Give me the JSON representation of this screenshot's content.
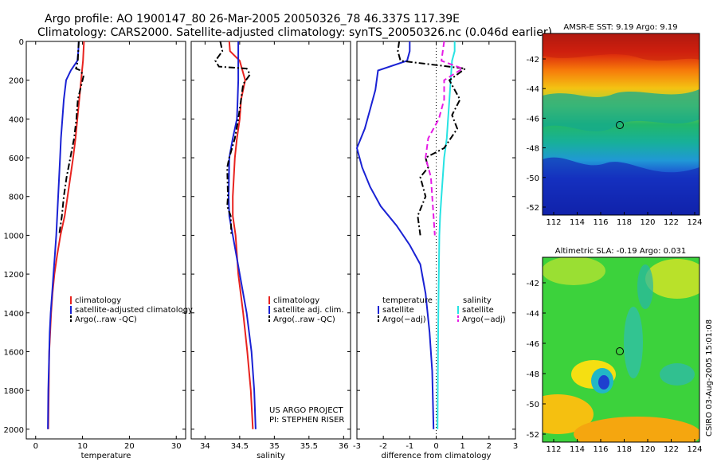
{
  "title": {
    "line1": "Argo profile: AO 1900147_80 26-Mar-2005 20050326_78 46.337S 117.39E",
    "line2": "Climatology: CARS2000. Satellite-adjusted climatology: synTS_20050326.nc (0.046d earlier)"
  },
  "side_stamp": "CSIRO 03-Aug-2005 15:01:08",
  "colors": {
    "climatology": "#e8231f",
    "satellite": "#1a22d4",
    "argo": "#000000",
    "sal_satellite": "#27e3e3",
    "sal_argo": "#e61be6"
  },
  "chart_data": [
    {
      "id": "temperature",
      "type": "line",
      "xlabel": "temperature",
      "ylabel": "",
      "xlim": [
        -2,
        32
      ],
      "ylim": [
        0,
        2050
      ],
      "y_inverted": true,
      "xticks": [
        0,
        10,
        20,
        30
      ],
      "yticks": [
        0,
        200,
        400,
        600,
        800,
        1000,
        1200,
        1400,
        1600,
        1800,
        2000
      ],
      "legend": [
        "climatology",
        "satellite-adjusted climatology",
        "Argo(..raw -QC)"
      ],
      "series": [
        {
          "name": "climatology",
          "style": "solid",
          "color": "#e8231f",
          "points": [
            [
              10.3,
              0
            ],
            [
              10.2,
              50
            ],
            [
              10.1,
              100
            ],
            [
              9.9,
              150
            ],
            [
              9.7,
              200
            ],
            [
              9.3,
              300
            ],
            [
              8.9,
              400
            ],
            [
              8.5,
              500
            ],
            [
              8.0,
              600
            ],
            [
              7.4,
              700
            ],
            [
              6.8,
              800
            ],
            [
              6.2,
              900
            ],
            [
              5.3,
              1000
            ],
            [
              4.6,
              1100
            ],
            [
              4.0,
              1200
            ],
            [
              3.6,
              1300
            ],
            [
              3.3,
              1400
            ],
            [
              3.1,
              1500
            ],
            [
              2.9,
              1600
            ],
            [
              2.8,
              1800
            ],
            [
              2.7,
              2000
            ]
          ]
        },
        {
          "name": "satellite-adjusted climatology",
          "style": "solid",
          "color": "#1a22d4",
          "points": [
            [
              9.2,
              0
            ],
            [
              9.1,
              50
            ],
            [
              8.9,
              100
            ],
            [
              7.5,
              150
            ],
            [
              6.5,
              200
            ],
            [
              6.0,
              300
            ],
            [
              5.7,
              400
            ],
            [
              5.4,
              500
            ],
            [
              5.2,
              600
            ],
            [
              5.0,
              700
            ],
            [
              4.8,
              800
            ],
            [
              4.6,
              900
            ],
            [
              4.4,
              1000
            ],
            [
              4.1,
              1100
            ],
            [
              3.8,
              1200
            ],
            [
              3.5,
              1300
            ],
            [
              3.2,
              1400
            ],
            [
              3.0,
              1500
            ],
            [
              2.9,
              1600
            ],
            [
              2.7,
              1800
            ],
            [
              2.6,
              2000
            ]
          ]
        },
        {
          "name": "Argo(..raw -QC)",
          "style": "dash-dot",
          "color": "#000000",
          "points": [
            [
              9.2,
              0
            ],
            [
              9.1,
              40
            ],
            [
              9.0,
              100
            ],
            [
              8.6,
              140
            ],
            [
              9.6,
              150
            ],
            [
              10.2,
              180
            ],
            [
              9.5,
              250
            ],
            [
              9.0,
              300
            ],
            [
              8.7,
              400
            ],
            [
              8.2,
              500
            ],
            [
              7.4,
              600
            ],
            [
              6.6,
              700
            ],
            [
              6.0,
              800
            ],
            [
              5.6,
              900
            ],
            [
              5.0,
              1000
            ]
          ]
        }
      ]
    },
    {
      "id": "salinity",
      "type": "line",
      "xlabel": "salinity",
      "xlim": [
        33.8,
        36.1
      ],
      "ylim": [
        0,
        2050
      ],
      "y_inverted": true,
      "xticks": [
        34,
        34.5,
        35,
        35.5,
        36
      ],
      "yticks": [
        0,
        200,
        400,
        600,
        800,
        1000,
        1200,
        1400,
        1600,
        1800,
        2000
      ],
      "legend": [
        "climatology",
        "satellite adj. clim.",
        "Argo(..raw -QC)"
      ],
      "annotation": [
        "US ARGO PROJECT",
        "PI: STEPHEN RISER"
      ],
      "series": [
        {
          "name": "climatology",
          "style": "solid",
          "color": "#e8231f",
          "points": [
            [
              34.35,
              0
            ],
            [
              34.36,
              50
            ],
            [
              34.5,
              100
            ],
            [
              34.58,
              200
            ],
            [
              34.52,
              300
            ],
            [
              34.5,
              400
            ],
            [
              34.46,
              500
            ],
            [
              34.43,
              600
            ],
            [
              34.4,
              800
            ],
            [
              34.4,
              900
            ],
            [
              34.44,
              1000
            ],
            [
              34.48,
              1200
            ],
            [
              34.55,
              1400
            ],
            [
              34.61,
              1600
            ],
            [
              34.66,
              1800
            ],
            [
              34.69,
              2000
            ]
          ]
        },
        {
          "name": "satellite adj. clim.",
          "style": "solid",
          "color": "#1a22d4",
          "points": [
            [
              34.48,
              0
            ],
            [
              34.48,
              50
            ],
            [
              34.48,
              100
            ],
            [
              34.48,
              200
            ],
            [
              34.47,
              300
            ],
            [
              34.46,
              400
            ],
            [
              34.4,
              500
            ],
            [
              34.35,
              600
            ],
            [
              34.34,
              800
            ],
            [
              34.35,
              900
            ],
            [
              34.4,
              1000
            ],
            [
              34.5,
              1200
            ],
            [
              34.6,
              1400
            ],
            [
              34.67,
              1600
            ],
            [
              34.71,
              1800
            ],
            [
              34.73,
              2000
            ]
          ]
        },
        {
          "name": "Argo(..raw -QC)",
          "style": "dash-dot",
          "color": "#000000",
          "points": [
            [
              34.22,
              0
            ],
            [
              34.25,
              50
            ],
            [
              34.15,
              100
            ],
            [
              34.2,
              130
            ],
            [
              34.6,
              140
            ],
            [
              34.65,
              170
            ],
            [
              34.55,
              220
            ],
            [
              34.52,
              300
            ],
            [
              34.48,
              400
            ],
            [
              34.43,
              500
            ],
            [
              34.35,
              600
            ],
            [
              34.32,
              650
            ],
            [
              34.33,
              800
            ],
            [
              34.32,
              850
            ],
            [
              34.37,
              900
            ],
            [
              34.38,
              1000
            ]
          ]
        }
      ]
    },
    {
      "id": "difference",
      "type": "line",
      "xlabel": "difference from climatology",
      "xlim": [
        -3,
        3
      ],
      "ylim": [
        0,
        2050
      ],
      "y_inverted": true,
      "xticks": [
        -3,
        -2,
        -1,
        0,
        1,
        2,
        3
      ],
      "yticks": [
        0,
        200,
        400,
        600,
        800,
        1000,
        1200,
        1400,
        1600,
        1800,
        2000
      ],
      "legend_left_title": "temperature",
      "legend_left": [
        "satellite",
        "Argo(−adj)"
      ],
      "legend_right_title": "salinity",
      "legend_right": [
        "satellite",
        "Argo(−adj)"
      ],
      "series": [
        {
          "name": "temperature satellite",
          "style": "solid",
          "color": "#1a22d4",
          "points": [
            [
              -1.0,
              0
            ],
            [
              -1.0,
              50
            ],
            [
              -1.1,
              100
            ],
            [
              -2.2,
              150
            ],
            [
              -2.3,
              250
            ],
            [
              -2.5,
              350
            ],
            [
              -2.7,
              450
            ],
            [
              -3.0,
              550
            ],
            [
              -2.8,
              650
            ],
            [
              -2.5,
              750
            ],
            [
              -2.1,
              850
            ],
            [
              -1.5,
              950
            ],
            [
              -1.0,
              1050
            ],
            [
              -0.6,
              1150
            ],
            [
              -0.4,
              1300
            ],
            [
              -0.25,
              1500
            ],
            [
              -0.15,
              1700
            ],
            [
              -0.1,
              2000
            ]
          ]
        },
        {
          "name": "salinity satellite",
          "style": "solid",
          "color": "#27e3e3",
          "points": [
            [
              0.7,
              0
            ],
            [
              0.7,
              50
            ],
            [
              0.6,
              100
            ],
            [
              0.55,
              200
            ],
            [
              0.5,
              300
            ],
            [
              0.45,
              400
            ],
            [
              0.4,
              500
            ],
            [
              0.3,
              600
            ],
            [
              0.25,
              700
            ],
            [
              0.2,
              800
            ],
            [
              0.15,
              900
            ],
            [
              0.12,
              1000
            ],
            [
              0.1,
              1200
            ],
            [
              0.08,
              1400
            ],
            [
              0.07,
              1600
            ],
            [
              0.05,
              2000
            ]
          ]
        },
        {
          "name": "temperature Argo(−adj)",
          "style": "dash-dot",
          "color": "#000000",
          "points": [
            [
              -1.4,
              0
            ],
            [
              -1.45,
              50
            ],
            [
              -1.35,
              100
            ],
            [
              1.1,
              140
            ],
            [
              0.5,
              200
            ],
            [
              0.9,
              300
            ],
            [
              0.6,
              380
            ],
            [
              0.8,
              450
            ],
            [
              0.3,
              550
            ],
            [
              -0.4,
              600
            ],
            [
              -0.3,
              650
            ],
            [
              -0.6,
              700
            ],
            [
              -0.4,
              800
            ],
            [
              -0.7,
              900
            ],
            [
              -0.6,
              1000
            ]
          ]
        },
        {
          "name": "salinity Argo(−adj)",
          "style": "dash",
          "color": "#e61be6",
          "points": [
            [
              0.3,
              0
            ],
            [
              0.25,
              50
            ],
            [
              0.2,
              100
            ],
            [
              1.0,
              140
            ],
            [
              0.3,
              200
            ],
            [
              0.3,
              300
            ],
            [
              0.1,
              400
            ],
            [
              -0.3,
              500
            ],
            [
              -0.4,
              600
            ],
            [
              -0.2,
              700
            ],
            [
              -0.15,
              800
            ],
            [
              -0.1,
              900
            ],
            [
              -0.05,
              1000
            ]
          ]
        }
      ]
    }
  ],
  "maps": [
    {
      "id": "sst",
      "title": "AMSR-E SST: 9.19 Argo: 9.19",
      "xticks": [
        "112",
        "114",
        "116",
        "118",
        "120",
        "122",
        "124"
      ],
      "yticks": [
        "-42",
        "-44",
        "-46",
        "-48",
        "-50",
        "-52"
      ],
      "marker": {
        "lon": 117.39,
        "lat": -46.337
      }
    },
    {
      "id": "sla",
      "title": "Altimetric SLA: -0.19 Argo: 0.031",
      "xticks": [
        "112",
        "114",
        "116",
        "118",
        "120",
        "122",
        "124"
      ],
      "yticks": [
        "-42",
        "-44",
        "-46",
        "-48",
        "-50",
        "-52"
      ],
      "marker": {
        "lon": 117.39,
        "lat": -46.337
      }
    }
  ]
}
